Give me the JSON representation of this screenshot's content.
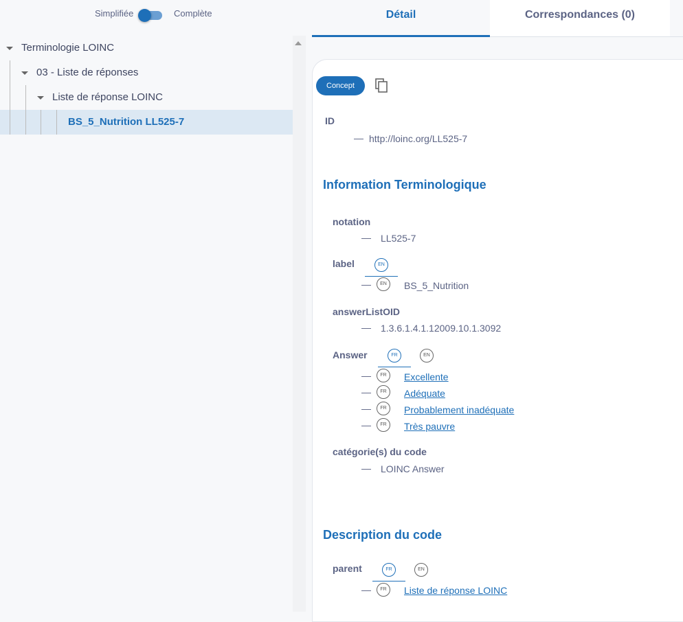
{
  "toggle": {
    "left_label": "Simplifiée",
    "right_label": "Complète",
    "state": "simplifiée"
  },
  "tree": [
    {
      "label": "Terminologie LOINC",
      "expanded": true
    },
    {
      "label": "03 - Liste de réponses",
      "expanded": true
    },
    {
      "label": "Liste de réponse LOINC",
      "expanded": true
    },
    {
      "label": "BS_5_Nutrition LL525-7",
      "selected": true
    }
  ],
  "tabs": [
    {
      "label": "Détail",
      "active": true
    },
    {
      "label": "Correspondances (0)"
    }
  ],
  "concept_button": "Concept",
  "id": {
    "key": "ID",
    "value": "http://loinc.org/LL525-7"
  },
  "dash": "—",
  "sections": {
    "info": "Information Terminologique",
    "desc": "Description du code"
  },
  "fields": {
    "notation": {
      "key": "notation",
      "value": "LL525-7"
    },
    "label": {
      "key": "label",
      "lang": "EN",
      "value": "BS_5_Nutrition",
      "value_lang": "EN"
    },
    "oid": {
      "key": "answerListOID",
      "value": "1.3.6.1.4.1.12009.10.1.3092"
    },
    "answer": {
      "key": "Answer",
      "langs": [
        "FR",
        "EN"
      ],
      "items": [
        {
          "lang": "FR",
          "label": "Excellente"
        },
        {
          "lang": "FR",
          "label": "Adéquate"
        },
        {
          "lang": "FR",
          "label": "Probablement inadéquate"
        },
        {
          "lang": "FR",
          "label": "Très pauvre"
        }
      ]
    },
    "category": {
      "key": "catégorie(s) du code",
      "value": "LOINC Answer"
    },
    "parent": {
      "key": "parent",
      "langs": [
        "FR",
        "EN"
      ],
      "items": [
        {
          "lang": "FR",
          "label": "Liste de réponse LOINC"
        }
      ]
    }
  },
  "colors": {
    "accent": "#1e6fb8",
    "text": "#5b6384",
    "selected_bg": "#dce8f3"
  }
}
